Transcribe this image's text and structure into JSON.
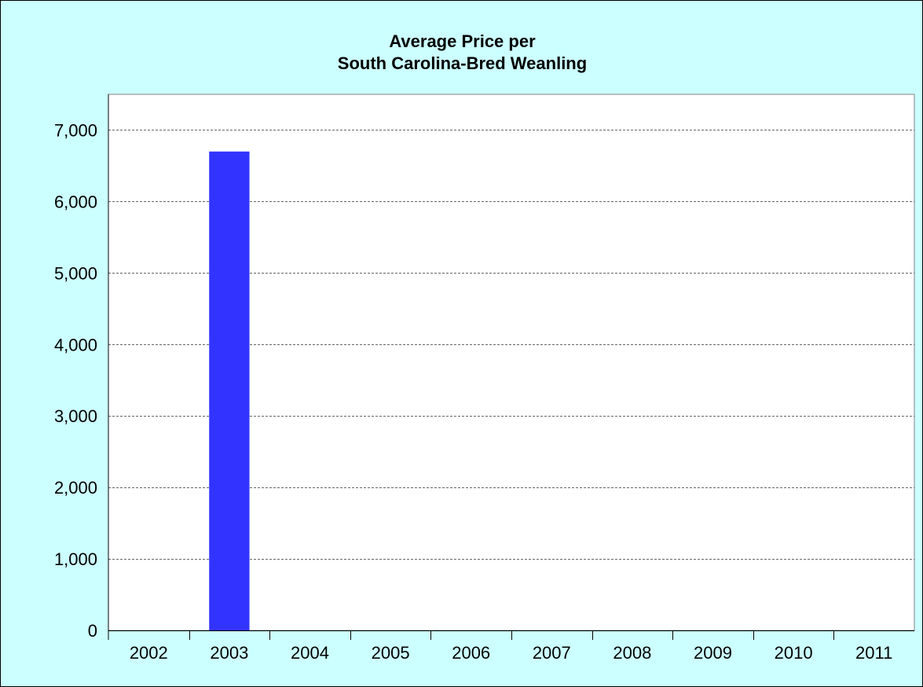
{
  "chart_data": {
    "type": "bar",
    "title_lines": [
      "Average Price per",
      "South Carolina-Bred Weanling"
    ],
    "categories": [
      "2002",
      "2003",
      "2004",
      "2005",
      "2006",
      "2007",
      "2008",
      "2009",
      "2010",
      "2011"
    ],
    "values": [
      0,
      6700,
      0,
      0,
      0,
      0,
      0,
      0,
      0,
      0
    ],
    "ylim": [
      0,
      7500
    ],
    "yticks": [
      0,
      1000,
      2000,
      3000,
      4000,
      5000,
      6000,
      7000
    ],
    "ytick_labels": [
      "0",
      "1,000",
      "2,000",
      "3,000",
      "4,000",
      "5,000",
      "6,000",
      "7,000"
    ],
    "xlabel": "",
    "ylabel": "",
    "grid": true,
    "legend": "none",
    "colors": {
      "background": "#ccffff",
      "plot_area": "#ffffff",
      "bar": "#3333ff",
      "grid": "#666666"
    }
  }
}
